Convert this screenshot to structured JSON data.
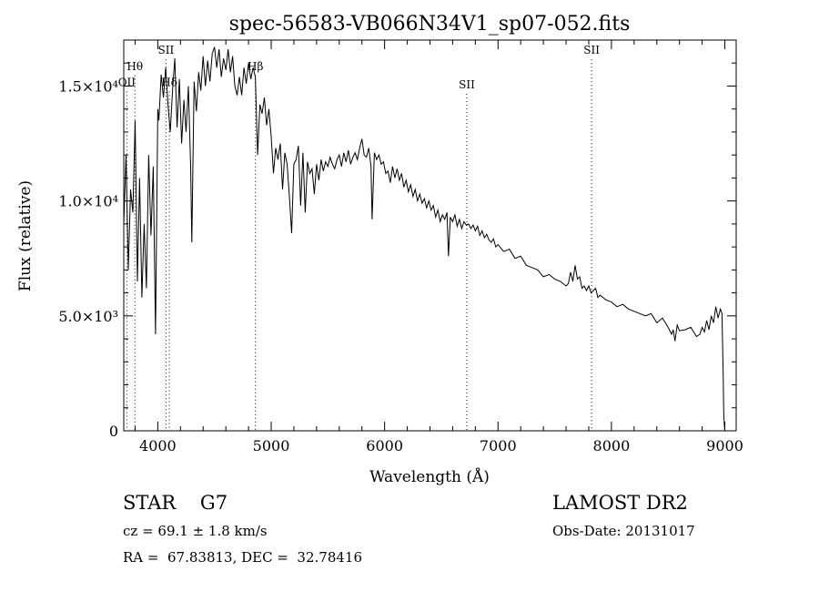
{
  "chart_data": {
    "type": "line",
    "title": "spec-56583-VB066N34V1_sp07-052.fits",
    "xlabel": "Wavelength (Å)",
    "ylabel": "Flux (relative)",
    "xlim": [
      3700,
      9100
    ],
    "ylim": [
      0,
      17000
    ],
    "xticks": [
      4000,
      5000,
      6000,
      7000,
      8000,
      9000
    ],
    "xtick_labels": [
      "4000",
      "5000",
      "6000",
      "7000",
      "8000",
      "9000"
    ],
    "yticks": [
      0,
      5000,
      10000,
      15000
    ],
    "ytick_labels": [
      "0",
      "5.0×10³",
      "1.0×10⁴",
      "1.5×10⁴"
    ],
    "grid": false,
    "line_markers": [
      {
        "label": "Hθ",
        "x": 3798,
        "label_y": 15700
      },
      {
        "label": "OII",
        "x": 3727,
        "label_y": 15000
      },
      {
        "label": "SII",
        "x": 4072,
        "label_y": 16400
      },
      {
        "label": "Hδ",
        "x": 4102,
        "label_y": 15000
      },
      {
        "label": "Hβ",
        "x": 4861,
        "label_y": 15700
      },
      {
        "label": "SII",
        "x": 6725,
        "label_y": 14900
      },
      {
        "label": "SII",
        "x": 7825,
        "label_y": 16400
      }
    ],
    "series": [
      {
        "x": [
          3700,
          3720,
          3740,
          3760,
          3780,
          3800,
          3820,
          3840,
          3860,
          3880,
          3900,
          3920,
          3940,
          3960,
          3980,
          4000,
          4010,
          4030,
          4050,
          4070,
          4090,
          4110,
          4130,
          4150,
          4170,
          4190,
          4210,
          4230,
          4250,
          4270,
          4290,
          4300,
          4320,
          4340,
          4360,
          4380,
          4400,
          4420,
          4440,
          4460,
          4480,
          4500,
          4520,
          4540,
          4560,
          4580,
          4600,
          4620,
          4640,
          4660,
          4680,
          4700,
          4720,
          4740,
          4760,
          4780,
          4800,
          4820,
          4840,
          4860,
          4880,
          4900,
          4920,
          4940,
          4960,
          4980,
          5000,
          5020,
          5040,
          5060,
          5080,
          5100,
          5120,
          5140,
          5160,
          5180,
          5200,
          5220,
          5240,
          5260,
          5280,
          5300,
          5320,
          5340,
          5360,
          5380,
          5400,
          5420,
          5440,
          5460,
          5480,
          5500,
          5520,
          5540,
          5560,
          5580,
          5600,
          5620,
          5640,
          5660,
          5680,
          5700,
          5720,
          5740,
          5760,
          5780,
          5800,
          5820,
          5840,
          5860,
          5880,
          5890,
          5910,
          5930,
          5950,
          5970,
          5990,
          6010,
          6030,
          6050,
          6070,
          6090,
          6110,
          6130,
          6150,
          6170,
          6190,
          6210,
          6230,
          6250,
          6270,
          6290,
          6310,
          6330,
          6350,
          6370,
          6390,
          6410,
          6430,
          6450,
          6470,
          6490,
          6510,
          6530,
          6550,
          6563,
          6580,
          6600,
          6620,
          6640,
          6660,
          6680,
          6700,
          6720,
          6740,
          6760,
          6780,
          6800,
          6820,
          6840,
          6860,
          6880,
          6900,
          6920,
          6940,
          6960,
          6980,
          7000,
          7050,
          7100,
          7150,
          7200,
          7250,
          7300,
          7350,
          7400,
          7450,
          7500,
          7550,
          7600,
          7620,
          7640,
          7660,
          7680,
          7700,
          7720,
          7740,
          7760,
          7780,
          7800,
          7820,
          7840,
          7860,
          7880,
          7900,
          7950,
          8000,
          8050,
          8100,
          8150,
          8200,
          8250,
          8300,
          8350,
          8400,
          8450,
          8500,
          8530,
          8545,
          8560,
          8580,
          8600,
          8650,
          8700,
          8750,
          8780,
          8800,
          8820,
          8840,
          8860,
          8880,
          8900,
          8920,
          8940,
          8960,
          8975,
          8985,
          8990,
          8995,
          9000
        ],
        "y": [
          9000,
          12000,
          7000,
          10500,
          9500,
          13500,
          6500,
          11000,
          5800,
          9000,
          6200,
          12000,
          8500,
          11500,
          4200,
          14000,
          13500,
          15500,
          14500,
          15800,
          14200,
          13000,
          14800,
          16200,
          13200,
          15300,
          12500,
          14400,
          13000,
          15000,
          11500,
          8200,
          15200,
          13900,
          15600,
          14800,
          16300,
          15000,
          16100,
          15200,
          16400,
          16700,
          15800,
          16600,
          15400,
          16200,
          15700,
          16600,
          15600,
          16300,
          15000,
          14600,
          15400,
          14600,
          15800,
          15100,
          16000,
          15300,
          15800,
          15400,
          12000,
          14200,
          13800,
          14500,
          13300,
          14000,
          12800,
          11200,
          12300,
          11800,
          12500,
          10500,
          12100,
          11600,
          10200,
          8600,
          11600,
          11800,
          12400,
          9800,
          12100,
          9500,
          11700,
          11200,
          11400,
          10300,
          11600,
          10900,
          11800,
          11300,
          11700,
          11500,
          11900,
          11600,
          11400,
          11800,
          12000,
          11500,
          12100,
          11700,
          12200,
          11600,
          11900,
          12100,
          11800,
          12300,
          12700,
          12000,
          11900,
          12300,
          11500,
          9200,
          12100,
          11800,
          12000,
          11600,
          11700,
          11200,
          11300,
          10800,
          11500,
          11000,
          11400,
          10900,
          11200,
          10600,
          10900,
          10400,
          10700,
          10200,
          10500,
          10000,
          10300,
          9900,
          10100,
          9700,
          10000,
          9600,
          9800,
          9300,
          9600,
          9100,
          9400,
          9200,
          9500,
          7600,
          9300,
          9100,
          9400,
          8900,
          9200,
          8800,
          9100,
          8950,
          9000,
          8800,
          8950,
          8700,
          8900,
          8500,
          8700,
          8400,
          8550,
          8300,
          8200,
          8350,
          8000,
          8100,
          7800,
          7900,
          7500,
          7600,
          7200,
          7100,
          7000,
          6700,
          6800,
          6600,
          6500,
          6300,
          6400,
          6900,
          6500,
          7200,
          6600,
          6700,
          6200,
          6300,
          6100,
          6300,
          6000,
          6100,
          6200,
          5800,
          5900,
          5700,
          5600,
          5400,
          5500,
          5300,
          5200,
          5100,
          5000,
          5100,
          4700,
          4900,
          4500,
          4200,
          4400,
          3900,
          4600,
          4350,
          4400,
          4500,
          4100,
          4200,
          4500,
          4300,
          4800,
          4400,
          5000,
          4700,
          5400,
          4900,
          5300,
          5100,
          2500,
          800,
          300,
          0
        ]
      }
    ]
  },
  "info": {
    "star_type": "STAR    G7",
    "survey": "LAMOST DR2",
    "cz": "cz = 69.1 ± 1.8 km/s",
    "obs_date": "Obs-Date: 20131017",
    "coords": "RA =  67.83813, DEC =  32.78416"
  }
}
